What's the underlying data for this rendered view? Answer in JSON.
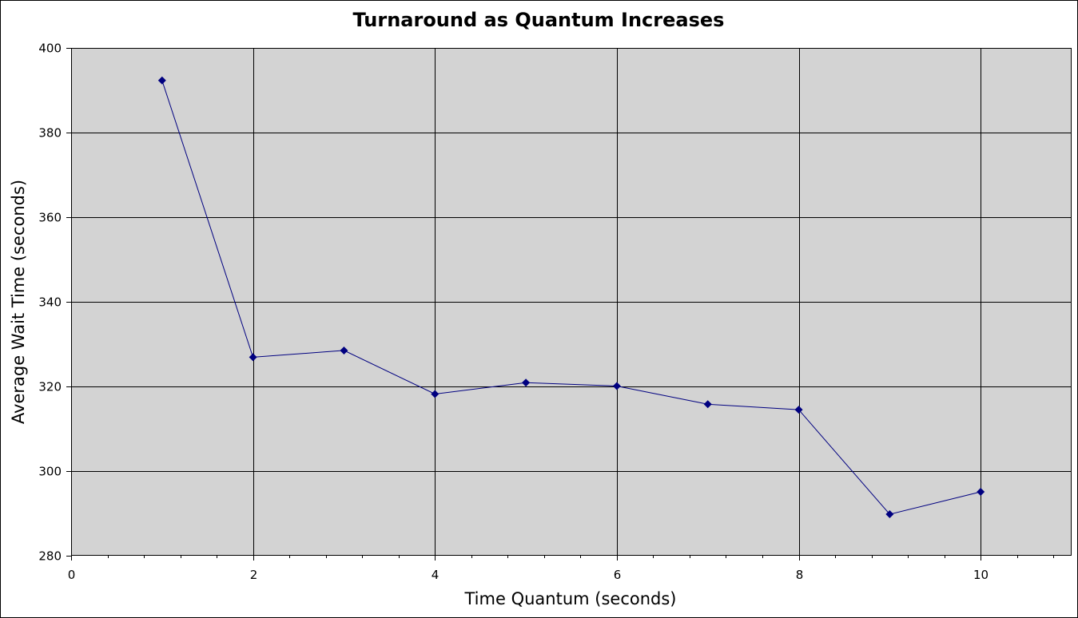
{
  "chart_data": {
    "type": "scatter",
    "title": "Turnaround as Quantum Increases",
    "xlabel": "Time Quantum (seconds)",
    "ylabel": "Average Wait Time (seconds)",
    "xlim": [
      0,
      11
    ],
    "ylim": [
      280,
      400
    ],
    "x_ticks": [
      0,
      2,
      4,
      6,
      8,
      10
    ],
    "y_ticks": [
      280,
      300,
      320,
      340,
      360,
      380,
      400
    ],
    "x_minor_step": 0.4,
    "grid": true,
    "legend": "none",
    "series": [
      {
        "color": "#000080",
        "marker": "diamond",
        "lines": true,
        "x": [
          1,
          2,
          3,
          4,
          5,
          6,
          7,
          8,
          9,
          10
        ],
        "y": [
          392.3,
          326.9,
          328.5,
          318.2,
          320.9,
          320.1,
          315.8,
          314.5,
          289.8,
          295.1
        ]
      }
    ],
    "colors": {
      "plot_background": "#d3d3d3",
      "gridline": "#000000",
      "frame": "#000000"
    }
  }
}
